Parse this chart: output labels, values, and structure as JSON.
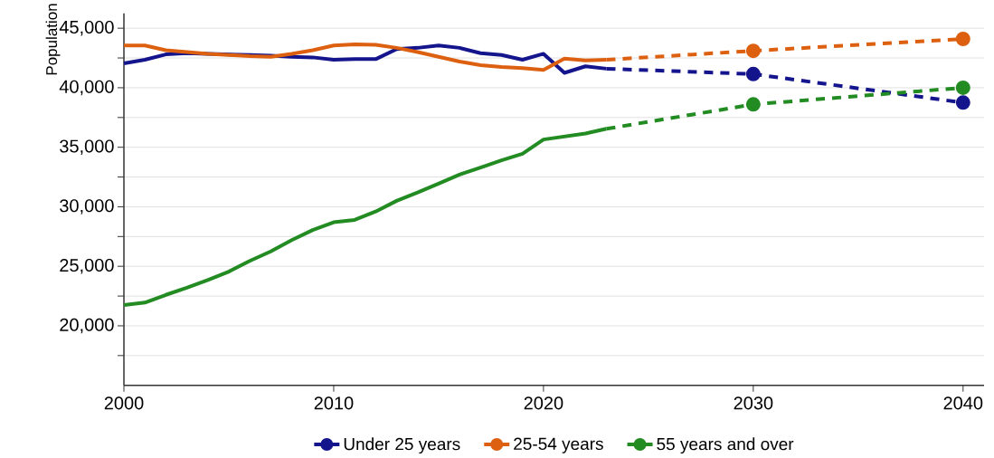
{
  "chart_data": {
    "type": "line",
    "ylabel": "Population",
    "xlim": [
      2000,
      2041
    ],
    "xticks": [
      2000,
      2010,
      2020,
      2030,
      2040
    ],
    "ylim": [
      15000,
      46250
    ],
    "yticks": [
      {
        "value": 17500,
        "label": null
      },
      {
        "value": 20000,
        "label": "20,000"
      },
      {
        "value": 22500,
        "label": null
      },
      {
        "value": 25000,
        "label": "25,000"
      },
      {
        "value": 27500,
        "label": null
      },
      {
        "value": 30000,
        "label": "30,000"
      },
      {
        "value": 32500,
        "label": null
      },
      {
        "value": 35000,
        "label": "35,000"
      },
      {
        "value": 37500,
        "label": null
      },
      {
        "value": 40000,
        "label": "40,000"
      },
      {
        "value": 42500,
        "label": null
      },
      {
        "value": 45000,
        "label": "45,000"
      }
    ],
    "grid": "y",
    "legend": "bottom",
    "marker": "none",
    "line_style": "solid",
    "series": [
      {
        "name": "Under 25 years",
        "color": "#14148c",
        "x": [
          2000,
          2001,
          2002,
          2003,
          2004,
          2005,
          2006,
          2007,
          2008,
          2009,
          2010,
          2011,
          2012,
          2013,
          2014,
          2015,
          2016,
          2017,
          2018,
          2019,
          2020,
          2021,
          2022,
          2023
        ],
        "values": [
          42050,
          42350,
          42800,
          42900,
          42850,
          42800,
          42750,
          42700,
          42600,
          42550,
          42350,
          42400,
          42400,
          43250,
          43350,
          43550,
          43350,
          42900,
          42750,
          42350,
          42850,
          41250,
          41800,
          41600
        ]
      },
      {
        "name": "25-54 years",
        "color": "#dd6010",
        "x": [
          2000,
          2001,
          2002,
          2003,
          2004,
          2005,
          2006,
          2007,
          2008,
          2009,
          2010,
          2011,
          2012,
          2013,
          2014,
          2015,
          2016,
          2017,
          2018,
          2019,
          2020,
          2021,
          2022,
          2023
        ],
        "values": [
          43550,
          43550,
          43150,
          43000,
          42850,
          42750,
          42650,
          42600,
          42850,
          43150,
          43550,
          43650,
          43600,
          43350,
          43000,
          42600,
          42200,
          41900,
          41750,
          41650,
          41500,
          42450,
          42300,
          42350
        ]
      },
      {
        "name": "55 years and over",
        "color": "#228b22",
        "x": [
          2000,
          2001,
          2002,
          2003,
          2004,
          2005,
          2006,
          2007,
          2008,
          2009,
          2010,
          2011,
          2012,
          2013,
          2014,
          2015,
          2016,
          2017,
          2018,
          2019,
          2020,
          2021,
          2022,
          2023
        ],
        "values": [
          21750,
          21950,
          22600,
          23200,
          23850,
          24550,
          25450,
          26250,
          27200,
          28050,
          28700,
          28900,
          29600,
          30500,
          31200,
          31950,
          32700,
          33300,
          33900,
          34450,
          35650,
          35900,
          36150,
          36550
        ]
      },
      {
        "color": "#14148c",
        "line_style": "dashed",
        "marker": "circle",
        "x": [
          2023,
          2030,
          2040
        ],
        "values": [
          41600,
          41150,
          38750
        ]
      },
      {
        "color": "#dd6010",
        "line_style": "dashed",
        "marker": "circle",
        "x": [
          2023,
          2030,
          2040
        ],
        "values": [
          42350,
          43100,
          44100
        ]
      },
      {
        "color": "#228b22",
        "line_style": "dashed",
        "marker": "circle",
        "x": [
          2023,
          2030,
          2040
        ],
        "values": [
          36550,
          38600,
          40000
        ]
      }
    ]
  }
}
